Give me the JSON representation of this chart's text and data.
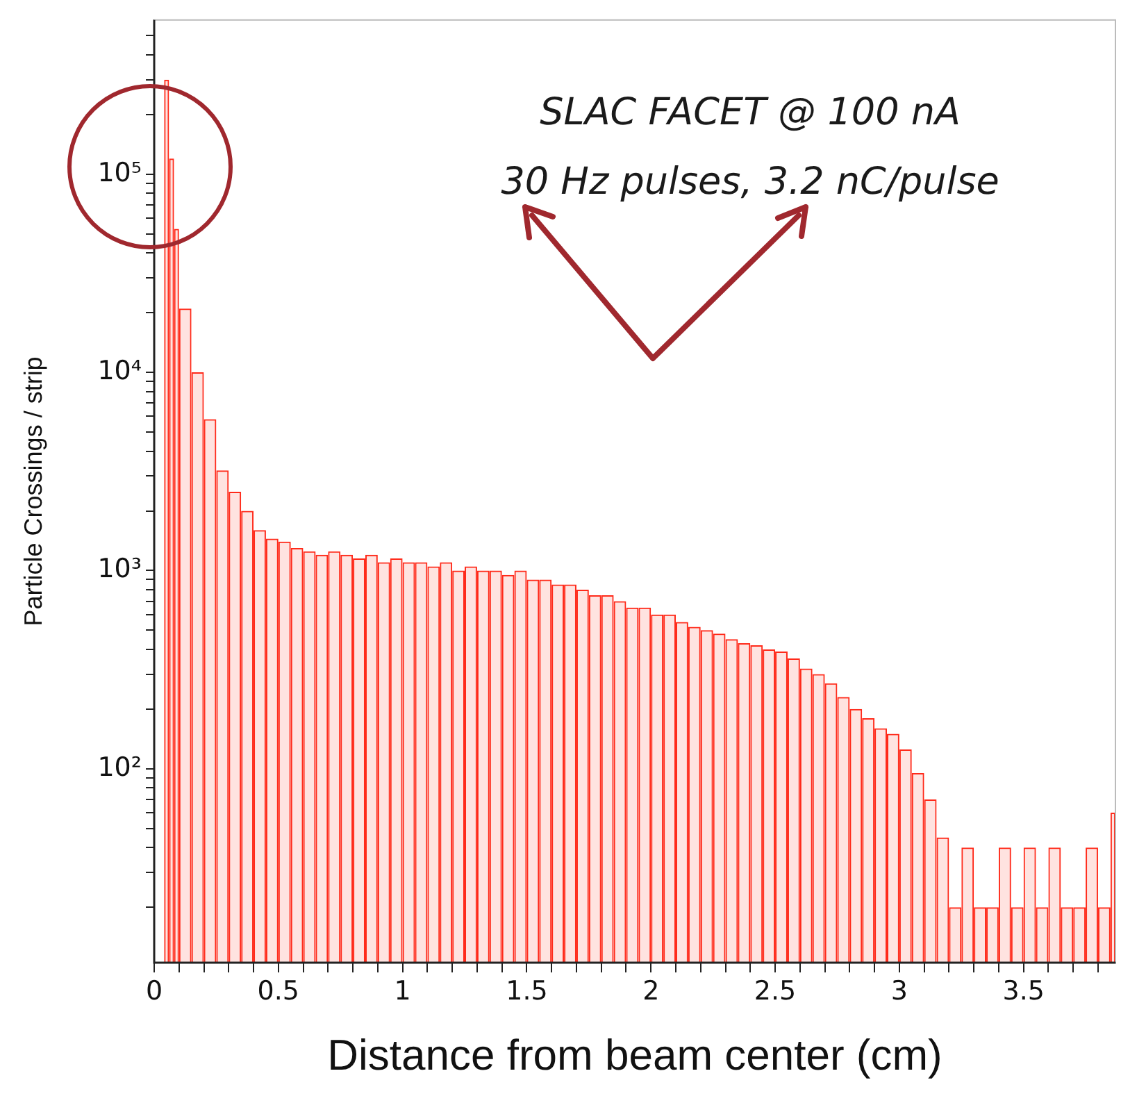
{
  "chart_data": {
    "type": "histogram",
    "xlabel": "Distance from beam center (cm)",
    "ylabel": "Particle Crossings / strip",
    "annotations": [
      "SLAC FACET @ 100 nA",
      "30 Hz pulses, 3.2 nC/pulse"
    ],
    "color": "#ff2a1a",
    "log": "y",
    "grid": false,
    "bins": [
      0.04,
      0.06,
      0.08,
      0.1,
      0.15,
      0.2,
      0.25,
      0.3,
      0.35,
      0.4,
      0.45,
      0.5,
      0.55,
      0.6,
      0.65,
      0.7,
      0.75,
      0.8,
      0.85,
      0.9,
      0.95,
      1.0,
      1.05,
      1.1,
      1.15,
      1.2,
      1.25,
      1.3,
      1.35,
      1.4,
      1.45,
      1.5,
      1.55,
      1.6,
      1.65,
      1.7,
      1.75,
      1.8,
      1.85,
      1.9,
      1.95,
      2.0,
      2.05,
      2.1,
      2.15,
      2.2,
      2.25,
      2.3,
      2.35,
      2.4,
      2.45,
      2.5,
      2.55,
      2.6,
      2.65,
      2.7,
      2.75,
      2.8,
      2.85,
      2.9,
      2.95,
      3.0,
      3.05,
      3.1,
      3.15,
      3.2,
      3.25,
      3.3,
      3.35,
      3.4,
      3.45,
      3.5,
      3.55,
      3.6,
      3.65,
      3.7,
      3.75,
      3.8,
      3.85,
      3.87
    ],
    "values": [
      300000,
      120000,
      53000,
      21000,
      10000,
      5800,
      3200,
      2500,
      2000,
      1600,
      1450,
      1400,
      1300,
      1250,
      1200,
      1250,
      1200,
      1150,
      1200,
      1100,
      1150,
      1100,
      1100,
      1050,
      1100,
      1000,
      1050,
      1000,
      1000,
      950,
      1000,
      900,
      900,
      850,
      850,
      800,
      750,
      750,
      700,
      650,
      650,
      600,
      600,
      550,
      520,
      500,
      480,
      450,
      430,
      420,
      400,
      390,
      360,
      320,
      300,
      270,
      230,
      200,
      180,
      160,
      150,
      125,
      95,
      70,
      45,
      20,
      40,
      20,
      20,
      40,
      20,
      40,
      20,
      40,
      20,
      20,
      40,
      20,
      60
    ],
    "xlim": [
      0,
      3.87
    ],
    "xticks": [
      0,
      {
        "value": 0.1,
        "label": null
      },
      {
        "value": 0.2,
        "label": null
      },
      {
        "value": 0.3,
        "label": null
      },
      {
        "value": 0.4,
        "label": null
      },
      {
        "value": 0.5,
        "label": "0.5"
      },
      {
        "value": 0.6,
        "label": null
      },
      {
        "value": 0.7,
        "label": null
      },
      {
        "value": 0.8,
        "label": null
      },
      {
        "value": 0.9,
        "label": null
      },
      1,
      {
        "value": 1.1,
        "label": null
      },
      {
        "value": 1.2,
        "label": null
      },
      {
        "value": 1.3,
        "label": null
      },
      {
        "value": 1.4,
        "label": null
      },
      {
        "value": 1.5,
        "label": "1.5"
      },
      {
        "value": 1.6,
        "label": null
      },
      {
        "value": 1.7,
        "label": null
      },
      {
        "value": 1.8,
        "label": null
      },
      {
        "value": 1.9,
        "label": null
      },
      2,
      {
        "value": 2.1,
        "label": null
      },
      {
        "value": 2.2,
        "label": null
      },
      {
        "value": 2.3,
        "label": null
      },
      {
        "value": 2.4,
        "label": null
      },
      {
        "value": 2.5,
        "label": "2.5"
      },
      {
        "value": 2.6,
        "label": null
      },
      {
        "value": 2.7,
        "label": null
      },
      {
        "value": 2.8,
        "label": null
      },
      {
        "value": 2.9,
        "label": null
      },
      3,
      {
        "value": 3.1,
        "label": null
      },
      {
        "value": 3.2,
        "label": null
      },
      {
        "value": 3.3,
        "label": null
      },
      {
        "value": 3.4,
        "label": null
      },
      {
        "value": 3.5,
        "label": "3.5"
      },
      {
        "value": 3.6,
        "label": null
      },
      {
        "value": 3.7,
        "label": null
      },
      {
        "value": 3.8,
        "label": null
      }
    ],
    "ylim": [
      10.5,
      600000
    ],
    "yticks": [
      {
        "value": 20,
        "label": null
      },
      {
        "value": 30,
        "label": null
      },
      {
        "value": 40,
        "label": null
      },
      {
        "value": 50,
        "label": null
      },
      {
        "value": 60,
        "label": null
      },
      {
        "value": 70,
        "label": null
      },
      {
        "value": 80,
        "label": null
      },
      {
        "value": 90,
        "label": null
      },
      {
        "value": 100,
        "label": "10²"
      },
      {
        "value": 200,
        "label": null
      },
      {
        "value": 300,
        "label": null
      },
      {
        "value": 400,
        "label": null
      },
      {
        "value": 500,
        "label": null
      },
      {
        "value": 600,
        "label": null
      },
      {
        "value": 700,
        "label": null
      },
      {
        "value": 800,
        "label": null
      },
      {
        "value": 900,
        "label": null
      },
      {
        "value": 1000,
        "label": "10³"
      },
      {
        "value": 2000,
        "label": null
      },
      {
        "value": 3000,
        "label": null
      },
      {
        "value": 4000,
        "label": null
      },
      {
        "value": 5000,
        "label": null
      },
      {
        "value": 6000,
        "label": null
      },
      {
        "value": 7000,
        "label": null
      },
      {
        "value": 8000,
        "label": null
      },
      {
        "value": 9000,
        "label": null
      },
      {
        "value": 10000,
        "label": "10⁴"
      },
      {
        "value": 20000,
        "label": null
      },
      {
        "value": 30000,
        "label": null
      },
      {
        "value": 40000,
        "label": null
      },
      {
        "value": 50000,
        "label": null
      },
      {
        "value": 60000,
        "label": null
      },
      {
        "value": 70000,
        "label": null
      },
      {
        "value": 80000,
        "label": null
      },
      {
        "value": 90000,
        "label": null
      },
      {
        "value": 100000,
        "label": "10⁵"
      },
      {
        "value": 200000,
        "label": null
      },
      {
        "value": 300000,
        "label": null
      },
      {
        "value": 400000,
        "label": null
      },
      {
        "value": 500000,
        "label": null
      }
    ]
  }
}
